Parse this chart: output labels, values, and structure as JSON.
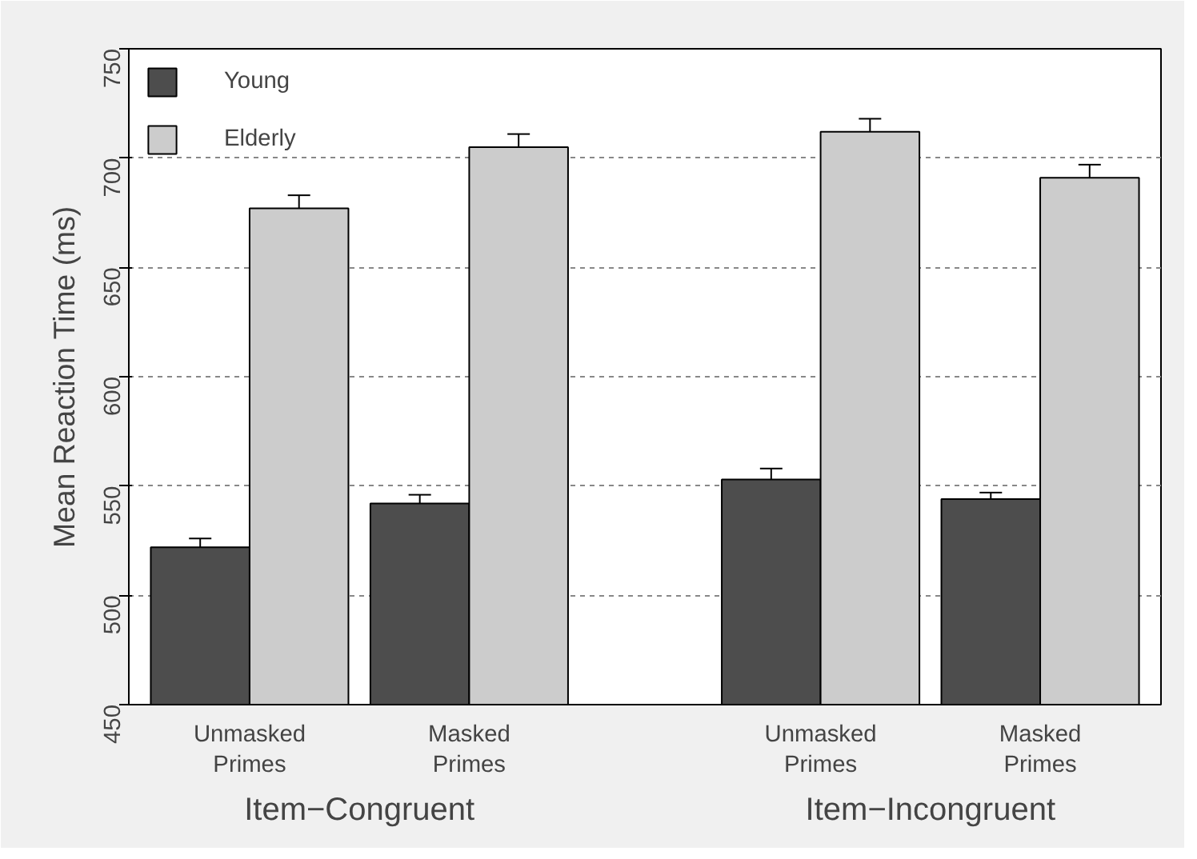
{
  "chart_data": {
    "type": "bar",
    "ylabel": "Mean Reaction Time (ms)",
    "categories": [
      "Unmasked\nPrimes",
      "Masked\nPrimes",
      "Unmasked\nPrimes",
      "Masked\nPrimes"
    ],
    "annotations": [
      "Item−Congruent",
      "Item−Incongruent"
    ],
    "series": [
      {
        "name": "Young",
        "color": "#4d4d4d",
        "values": [
          522,
          542,
          553,
          544
        ],
        "errors": [
          4,
          4,
          5,
          3
        ]
      },
      {
        "name": "Elderly",
        "color": "#cccccc",
        "values": [
          677,
          705,
          712,
          691
        ],
        "errors": [
          6,
          6,
          6,
          6
        ]
      }
    ],
    "ylim": [
      450,
      750
    ],
    "yticks": [
      450,
      500,
      550,
      600,
      650,
      700,
      750
    ],
    "grid": "y",
    "legend": "top left"
  }
}
